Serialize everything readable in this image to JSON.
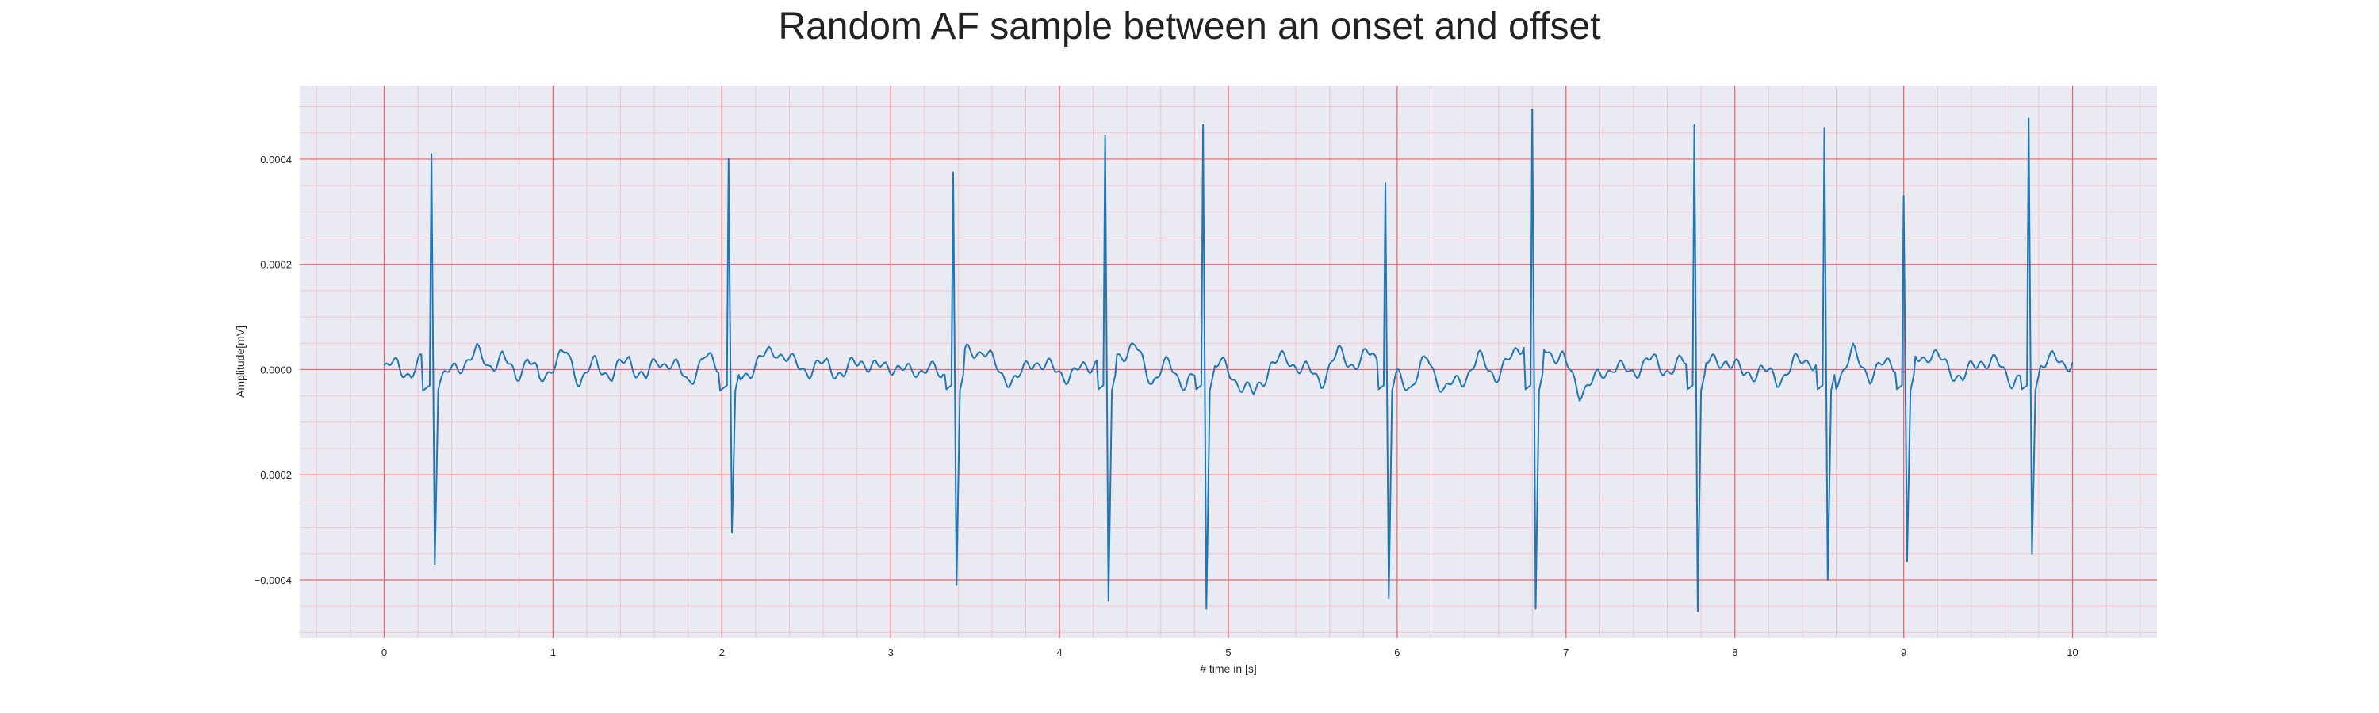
{
  "chart_data": {
    "type": "line",
    "title": "Random AF sample between an onset and offset",
    "xlabel": "# time in [s]",
    "ylabel": "Amplitude[mV]",
    "xlim": [
      -0.5,
      10.5
    ],
    "ylim": [
      -0.00051,
      0.00054
    ],
    "xticks": [
      0,
      1,
      2,
      3,
      4,
      5,
      6,
      7,
      8,
      9,
      10
    ],
    "xtick_labels": [
      "0",
      "1",
      "2",
      "3",
      "4",
      "5",
      "6",
      "7",
      "8",
      "9",
      "10"
    ],
    "yticks": [
      0.0004,
      0.0002,
      0.0,
      -0.0002,
      -0.0004
    ],
    "ytick_labels": [
      "0.0004",
      "0.0002",
      "0.0000",
      "−0.0002",
      "−0.0004"
    ],
    "grid": true,
    "minor_grid": true,
    "background_color": "#eaeaf2",
    "major_grid_color": "#e8666a",
    "minor_grid_color": "#f2c4cc",
    "line_color": "#1f77b4",
    "baseline_waveform": {
      "x": [
        0.0,
        0.08,
        0.16,
        0.24,
        0.34,
        0.45,
        0.55,
        0.62,
        0.7,
        0.78,
        0.85,
        0.92,
        1.0,
        1.08,
        1.16,
        1.25,
        1.35,
        1.45,
        1.55,
        1.62,
        1.7,
        1.8,
        1.9,
        1.98,
        2.1,
        2.2,
        2.32,
        2.42,
        2.52,
        2.62,
        2.72,
        2.82,
        2.92,
        3.02,
        3.12,
        3.22,
        3.3,
        3.45,
        3.55,
        3.65,
        3.75,
        3.85,
        3.95,
        4.05,
        4.15,
        4.22,
        4.35,
        4.45,
        4.55,
        4.65,
        4.75,
        4.85,
        4.95,
        5.05,
        5.15,
        5.25,
        5.35,
        5.45,
        5.55,
        5.65,
        5.75,
        5.85,
        5.98,
        6.08,
        6.18,
        6.28,
        6.38,
        6.48,
        6.58,
        6.68,
        6.76,
        6.88,
        6.98,
        7.08,
        7.18,
        7.28,
        7.38,
        7.48,
        7.58,
        7.68,
        7.85,
        7.95,
        8.05,
        8.15,
        8.25,
        8.35,
        8.45,
        8.6,
        8.7,
        8.8,
        8.9,
        9.05,
        9.15,
        9.25,
        9.35,
        9.45,
        9.55,
        9.65,
        9.72,
        9.85,
        9.95,
        10.0
      ],
      "y": [
        0.0,
        1e-05,
        -1e-05,
        2e-05,
        -2e-05,
        1e-05,
        3e-05,
        1e-05,
        2e-05,
        -1e-05,
        2e-05,
        -2e-05,
        1e-05,
        3e-05,
        -2e-05,
        1e-05,
        -1e-05,
        2e-05,
        -2e-05,
        2e-05,
        1e-05,
        -2e-05,
        2e-05,
        1e-05,
        -2e-05,
        1e-05,
        4e-05,
        1e-05,
        0.0,
        1e-05,
        -1e-05,
        2e-05,
        0.0,
        1e-05,
        -1e-05,
        1e-05,
        -2e-05,
        3e-05,
        4e-05,
        -1e-05,
        -2e-05,
        2e-05,
        0.0,
        -1e-05,
        0.0,
        2e-05,
        3e-05,
        4e-05,
        -2e-05,
        1e-05,
        -3e-05,
        0.0,
        1e-05,
        -2e-05,
        -5e-05,
        1e-05,
        2e-05,
        0.0,
        -2e-05,
        3e-05,
        1e-05,
        3e-05,
        -1e-05,
        -3e-05,
        2e-05,
        -4e-05,
        -2e-05,
        2e-05,
        -1e-05,
        2e-05,
        6e-05,
        4e-05,
        2e-05,
        -4e-05,
        -2e-05,
        1e-05,
        -1e-05,
        2e-05,
        0.0,
        1e-05,
        1e-05,
        2e-05,
        -1e-05,
        0.0,
        -2e-05,
        1e-05,
        2e-05,
        -2e-05,
        3e-05,
        -1e-05,
        1e-05,
        2e-05,
        3e-05,
        1e-05,
        -2e-05,
        2e-05,
        1e-05,
        -2e-05,
        -1e-05,
        2e-05,
        1e-05,
        2e-05
      ]
    },
    "qrs_complexes": [
      {
        "t": 0.28,
        "peak": 0.00041,
        "trough": -0.00037
      },
      {
        "t": 2.04,
        "peak": 0.0004,
        "trough": -0.00031
      },
      {
        "t": 3.37,
        "peak": 0.000375,
        "trough": -0.00041
      },
      {
        "t": 4.27,
        "peak": 0.000445,
        "trough": -0.00044
      },
      {
        "t": 4.85,
        "peak": 0.000465,
        "trough": -0.000455
      },
      {
        "t": 5.93,
        "peak": 0.000355,
        "trough": -0.000435
      },
      {
        "t": 6.8,
        "peak": 0.000495,
        "trough": -0.000455
      },
      {
        "t": 7.76,
        "peak": 0.000465,
        "trough": -0.00046
      },
      {
        "t": 8.53,
        "peak": 0.00046,
        "trough": -0.0004
      },
      {
        "t": 9.0,
        "peak": 0.00033,
        "trough": -0.000365
      },
      {
        "t": 9.74,
        "peak": 0.000478,
        "trough": -0.00035
      }
    ]
  }
}
